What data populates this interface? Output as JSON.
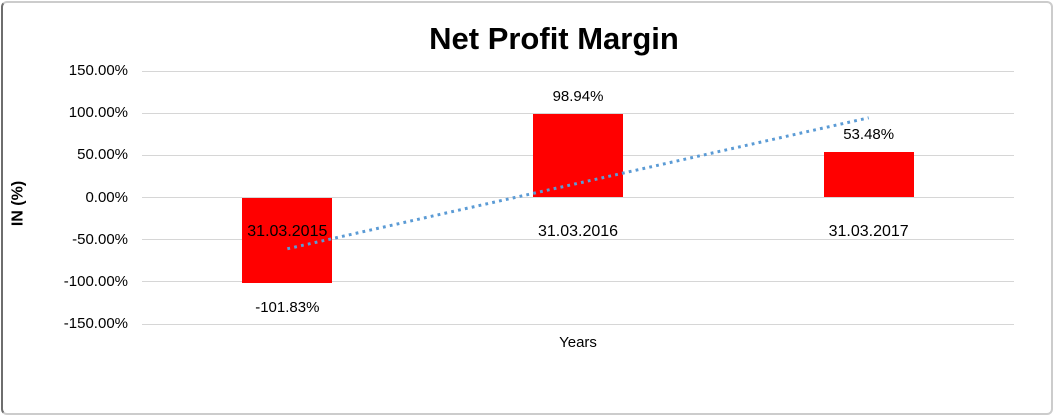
{
  "chart_data": {
    "type": "bar",
    "title": "Net Profit Margin",
    "xlabel": "Years",
    "ylabel": "IN (%)",
    "categories": [
      "31.03.2015",
      "31.03.2016",
      "31.03.2017"
    ],
    "values": [
      -101.83,
      98.94,
      53.48
    ],
    "data_labels": [
      "-101.83%",
      "98.94%",
      "53.48%"
    ],
    "y_ticks": [
      150,
      100,
      50,
      0,
      -50,
      -100,
      -150
    ],
    "y_tick_labels": [
      "150.00%",
      "100.00%",
      "50.00%",
      "0.00%",
      "-50.00%",
      "-100.00%",
      "-150.00%"
    ],
    "ylim": [
      -150,
      150
    ],
    "grid": true,
    "legend": false,
    "bar_color": "#FF0000",
    "gridline_color": "#D6D6D6",
    "trendline": {
      "type": "linear",
      "style": "dotted",
      "color": "#5B9BD5"
    }
  }
}
